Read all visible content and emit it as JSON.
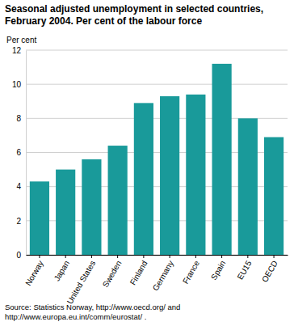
{
  "chart_data": {
    "type": "bar",
    "title": "Seasonal adjusted unemployment in selected countries, February 2004. Per cent of the labour force",
    "y_label": "Per cent",
    "categories": [
      "Norway",
      "Japan",
      "United States",
      "Sweden",
      "Finland",
      "Germany",
      "France",
      "Spain",
      "EU15",
      "OECD"
    ],
    "values": [
      4.3,
      5.0,
      5.6,
      6.4,
      8.9,
      9.3,
      9.4,
      11.2,
      8.0,
      6.9
    ],
    "color": "#199a9a",
    "ylim": [
      0,
      12
    ],
    "yticks": [
      0,
      2,
      4,
      6,
      8,
      10,
      12
    ],
    "grid": true,
    "source": "Source: Statistics Norway, http://www.oecd.org/ and http://www.europa.eu.int/comm/eurostat/ ."
  }
}
